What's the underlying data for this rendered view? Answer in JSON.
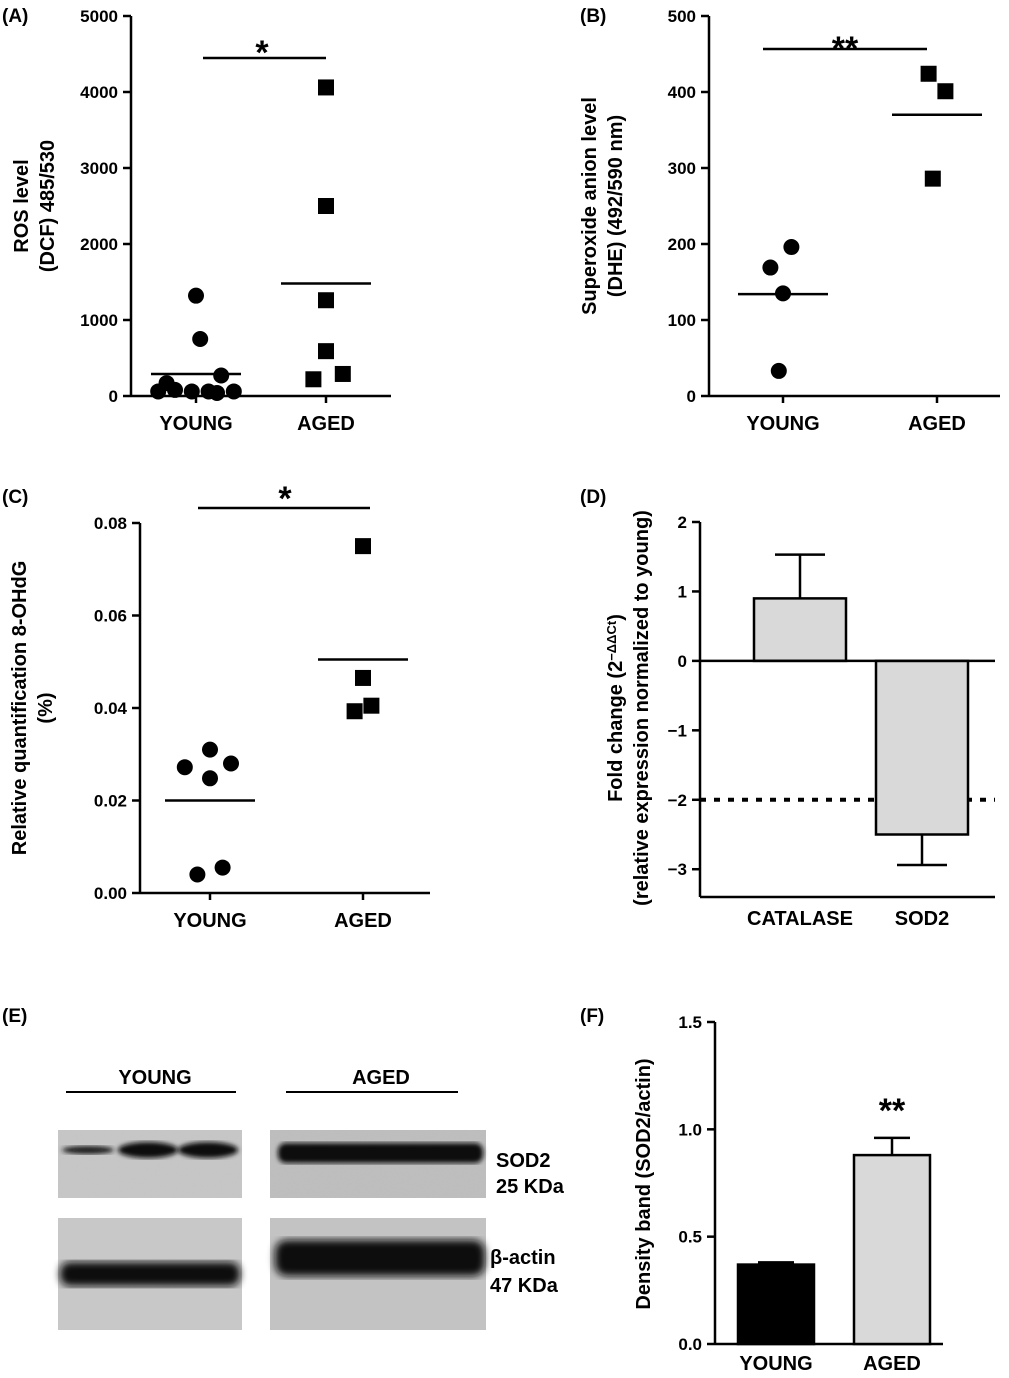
{
  "panels": {
    "A": {
      "label": "(A)"
    },
    "B": {
      "label": "(B)"
    },
    "C": {
      "label": "(C)"
    },
    "D": {
      "label": "(D)"
    },
    "E": {
      "label": "(E)"
    },
    "F": {
      "label": "(F)"
    }
  },
  "blot": {
    "group_young": "YOUNG",
    "group_aged": "AGED",
    "sod2_name": "SOD2",
    "sod2_size": "25 KDa",
    "actin_name": "β-actin",
    "actin_size": "47 KDa"
  },
  "chart_data": [
    {
      "id": "A",
      "type": "scatter",
      "ylabel_line1": "ROS level",
      "ylabel_line2": "(DCF) 485/530",
      "categories": [
        "YOUNG",
        "AGED"
      ],
      "ylim": [
        0,
        5000
      ],
      "yticks": [
        0,
        1000,
        2000,
        3000,
        4000,
        5000
      ],
      "series": [
        {
          "group": "YOUNG",
          "marker": "circle",
          "points": [
            [
              -0.45,
              60
            ],
            [
              -0.25,
              80
            ],
            [
              -0.05,
              60
            ],
            [
              0.15,
              60
            ],
            [
              0.45,
              60
            ],
            [
              -0.35,
              170
            ],
            [
              0.3,
              270
            ],
            [
              0.05,
              750
            ],
            [
              0.0,
              1320
            ],
            [
              0.25,
              40
            ]
          ],
          "mean": 290
        },
        {
          "group": "AGED",
          "marker": "square",
          "points": [
            [
              0.0,
              4060
            ],
            [
              0.0,
              2500
            ],
            [
              0.0,
              1260
            ],
            [
              0.0,
              590
            ],
            [
              0.2,
              290
            ],
            [
              -0.15,
              220
            ]
          ],
          "mean": 1480
        }
      ],
      "significance": "*"
    },
    {
      "id": "B",
      "type": "scatter",
      "ylabel_line1": "Superoxide anion level",
      "ylabel_line2": "(DHE) (492/590 nm)",
      "categories": [
        "YOUNG",
        "AGED"
      ],
      "ylim": [
        0,
        500
      ],
      "yticks": [
        0,
        100,
        200,
        300,
        400,
        500
      ],
      "series": [
        {
          "group": "YOUNG",
          "marker": "circle",
          "points": [
            [
              0.1,
              196
            ],
            [
              -0.15,
              169
            ],
            [
              0.0,
              135
            ],
            [
              -0.05,
              33
            ]
          ],
          "mean": 134
        },
        {
          "group": "AGED",
          "marker": "square",
          "points": [
            [
              -0.1,
              424
            ],
            [
              0.1,
              401
            ],
            [
              -0.05,
              286
            ]
          ],
          "mean": 370
        }
      ],
      "significance": "**"
    },
    {
      "id": "C",
      "type": "scatter",
      "ylabel_line1": "Relative quantification 8-OHdG",
      "ylabel_line2": "(%)",
      "categories": [
        "YOUNG",
        "AGED"
      ],
      "ylim": [
        0,
        0.08
      ],
      "yticks": [
        "0.00",
        "0.02",
        "0.04",
        "0.06",
        "0.08"
      ],
      "series": [
        {
          "group": "YOUNG",
          "marker": "circle",
          "points": [
            [
              -0.3,
              0.0272
            ],
            [
              0.0,
              0.031
            ],
            [
              0.25,
              0.028
            ],
            [
              0.0,
              0.0248
            ],
            [
              -0.15,
              0.004
            ],
            [
              0.15,
              0.0055
            ]
          ],
          "mean": 0.02
        },
        {
          "group": "AGED",
          "marker": "square",
          "points": [
            [
              0.0,
              0.075
            ],
            [
              0.0,
              0.0465
            ],
            [
              0.1,
              0.0405
            ],
            [
              -0.1,
              0.0393
            ]
          ],
          "mean": 0.0505
        }
      ],
      "significance": "*"
    },
    {
      "id": "D",
      "type": "bar",
      "ylabel_line1": "Fold change (2",
      "ylabel_sup": "−ΔΔCt",
      "ylabel_line1_end": ")",
      "ylabel_line2": "(relative expression normalized to young)",
      "categories": [
        "CATALASE",
        "SOD2"
      ],
      "values": [
        0.9,
        -2.5
      ],
      "errors": [
        0.63,
        0.44
      ],
      "ylim": [
        -3.4,
        2
      ],
      "yticks": [
        "2",
        "1",
        "0",
        "−1",
        "−2",
        "−3"
      ],
      "ytick_values": [
        2,
        1,
        0,
        -1,
        -2,
        -3
      ],
      "reference_line": -2,
      "bar_color": "#d9d9d9"
    },
    {
      "id": "F",
      "type": "bar",
      "ylabel": "Density band (SOD2/actin)",
      "categories": [
        "YOUNG",
        "AGED"
      ],
      "values": [
        0.37,
        0.88
      ],
      "errors": [
        0.01,
        0.08
      ],
      "ylim": [
        0,
        1.5
      ],
      "yticks": [
        "0.0",
        "0.5",
        "1.0",
        "1.5"
      ],
      "ytick_values": [
        0,
        0.5,
        1.0,
        1.5
      ],
      "colors": [
        "#000000",
        "#d9d9d9"
      ],
      "significance": "**"
    }
  ]
}
